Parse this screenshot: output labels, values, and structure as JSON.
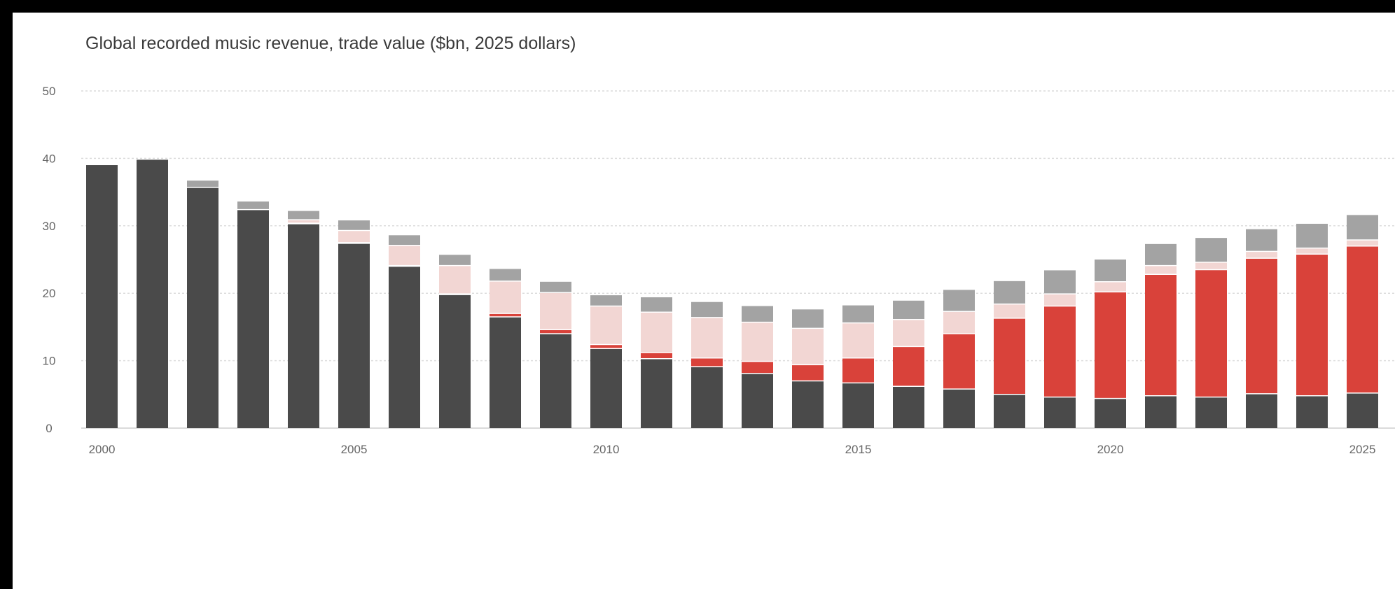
{
  "chart_data": {
    "type": "bar",
    "stacked": true,
    "title": "Global recorded music revenue, trade value ($bn, 2025 dollars)",
    "xlabel": "",
    "ylabel": "",
    "ylim": [
      0,
      50
    ],
    "yticks": [
      0,
      10,
      20,
      30,
      40,
      50
    ],
    "grid": true,
    "xtick_labels": [
      "2000",
      "2005",
      "2010",
      "2015",
      "2020",
      "2025"
    ],
    "categories": [
      "2000",
      "2001",
      "2002",
      "2003",
      "2004",
      "2005",
      "2006",
      "2007",
      "2008",
      "2009",
      "2010",
      "2011",
      "2012",
      "2013",
      "2014",
      "2015",
      "2016",
      "2017",
      "2018",
      "2019",
      "2020",
      "2021",
      "2022",
      "2023",
      "2024",
      "2025"
    ],
    "series": [
      {
        "color": "#4a4a4a",
        "values": [
          39.0,
          39.8,
          35.7,
          32.4,
          30.3,
          27.4,
          24.0,
          19.8,
          16.5,
          14.0,
          11.8,
          10.3,
          9.1,
          8.1,
          7.0,
          6.7,
          6.2,
          5.8,
          5.0,
          4.6,
          4.4,
          4.8,
          4.6,
          5.1,
          4.8,
          5.2
        ]
      },
      {
        "color": "#d9423a",
        "values": [
          0,
          0,
          0,
          0,
          0.1,
          0.1,
          0.1,
          0.1,
          0.5,
          0.6,
          0.6,
          0.9,
          1.3,
          1.8,
          2.4,
          3.7,
          5.9,
          8.2,
          11.3,
          13.5,
          15.8,
          18.0,
          18.9,
          20.1,
          21.0,
          21.8
        ]
      },
      {
        "color": "#f2d6d3",
        "values": [
          0,
          0,
          0,
          0,
          0.5,
          1.8,
          3.0,
          4.2,
          4.8,
          5.5,
          5.7,
          6.0,
          6.0,
          5.8,
          5.4,
          5.2,
          4.0,
          3.3,
          2.1,
          1.8,
          1.5,
          1.3,
          1.1,
          1.0,
          0.9,
          0.9
        ]
      },
      {
        "color": "#a3a3a3",
        "values": [
          0,
          0,
          1.0,
          1.2,
          1.3,
          1.5,
          1.5,
          1.6,
          1.8,
          1.6,
          1.6,
          2.2,
          2.3,
          2.4,
          2.8,
          2.6,
          2.8,
          3.2,
          3.4,
          3.5,
          3.3,
          3.2,
          3.6,
          3.3,
          3.6,
          3.7
        ]
      }
    ]
  }
}
